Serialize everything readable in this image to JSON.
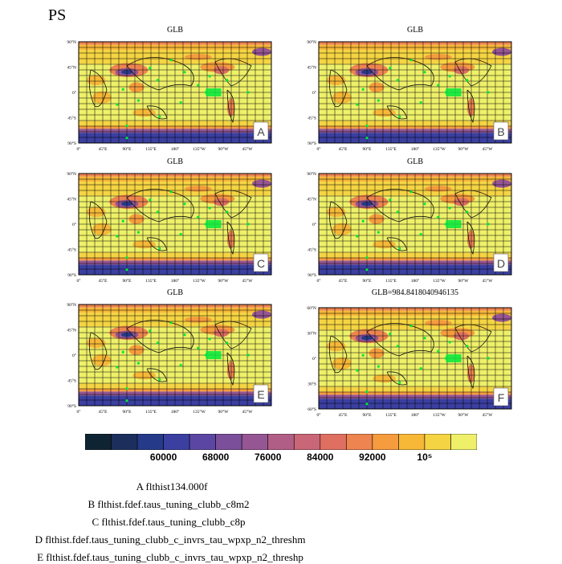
{
  "main_title": "PS",
  "colors": {
    "palette": [
      "#0f2433",
      "#1c2f5c",
      "#263a8a",
      "#3a3fa0",
      "#5b47a3",
      "#7b4f9a",
      "#955693",
      "#b15e86",
      "#c96677",
      "#de6f61",
      "#ee8450",
      "#f59c3e",
      "#f7b838",
      "#f5d443",
      "#eef06a"
    ],
    "grid": "#000000",
    "stations": "#00e83a"
  },
  "colorbar": {
    "tick_labels": [
      "60000",
      "68000",
      "76000",
      "84000",
      "92000",
      "10⁵"
    ]
  },
  "chart_data": [
    {
      "type": "heatmap",
      "title": "GLB",
      "panel_label": "A",
      "lat_ticks": [
        "90°N",
        "45°N",
        "0°",
        "45°S",
        "90°S"
      ],
      "lon_ticks": [
        "0°",
        "45°E",
        "90°E",
        "135°E",
        "180°",
        "135°W",
        "90°W",
        "45°W"
      ]
    },
    {
      "type": "heatmap",
      "title": "GLB",
      "panel_label": "B",
      "lat_ticks": [
        "90°N",
        "45°N",
        "0°",
        "45°S",
        "90°S"
      ],
      "lon_ticks": [
        "0°",
        "45°E",
        "90°E",
        "135°E",
        "180°",
        "135°W",
        "90°W",
        "45°W"
      ]
    },
    {
      "type": "heatmap",
      "title": "GLB",
      "panel_label": "C",
      "lat_ticks": [
        "90°N",
        "45°N",
        "0°",
        "45°S",
        "90°S"
      ],
      "lon_ticks": [
        "0°",
        "45°E",
        "90°E",
        "135°E",
        "180°",
        "135°W",
        "90°W",
        "45°W"
      ]
    },
    {
      "type": "heatmap",
      "title": "GLB",
      "panel_label": "D",
      "lat_ticks": [
        "90°N",
        "45°N",
        "0°",
        "45°S",
        "90°S"
      ],
      "lon_ticks": [
        "0°",
        "45°E",
        "90°E",
        "135°E",
        "180°",
        "135°W",
        "90°W",
        "45°W"
      ]
    },
    {
      "type": "heatmap",
      "title": "GLB",
      "panel_label": "E",
      "lat_ticks": [
        "90°N",
        "45°N",
        "0°",
        "45°S",
        "90°S"
      ],
      "lon_ticks": [
        "0°",
        "45°E",
        "90°E",
        "135°E",
        "180°",
        "135°W",
        "90°W",
        "45°W"
      ]
    },
    {
      "type": "heatmap",
      "title": "GLB=984.8418040946135",
      "panel_label": "F",
      "lat_ticks": [
        "60°N",
        "30°N",
        "0°",
        "30°S",
        "60°S"
      ],
      "lon_ticks": [
        "0°",
        "45°E",
        "90°E",
        "135°E",
        "180°",
        "135°W",
        "90°W",
        "45°W"
      ]
    }
  ],
  "legend": [
    "A  flthist134.000f",
    "B  flthist.fdef.taus_tuning_clubb_c8m2",
    "C  flthist.fdef.taus_tuning_clubb_c8p",
    "D  flthist.fdef.taus_tuning_clubb_c_invrs_tau_wpxp_n2_threshm",
    "E  flthist.fdef.taus_tuning_clubb_c_invrs_tau_wpxp_n2_threshp"
  ]
}
